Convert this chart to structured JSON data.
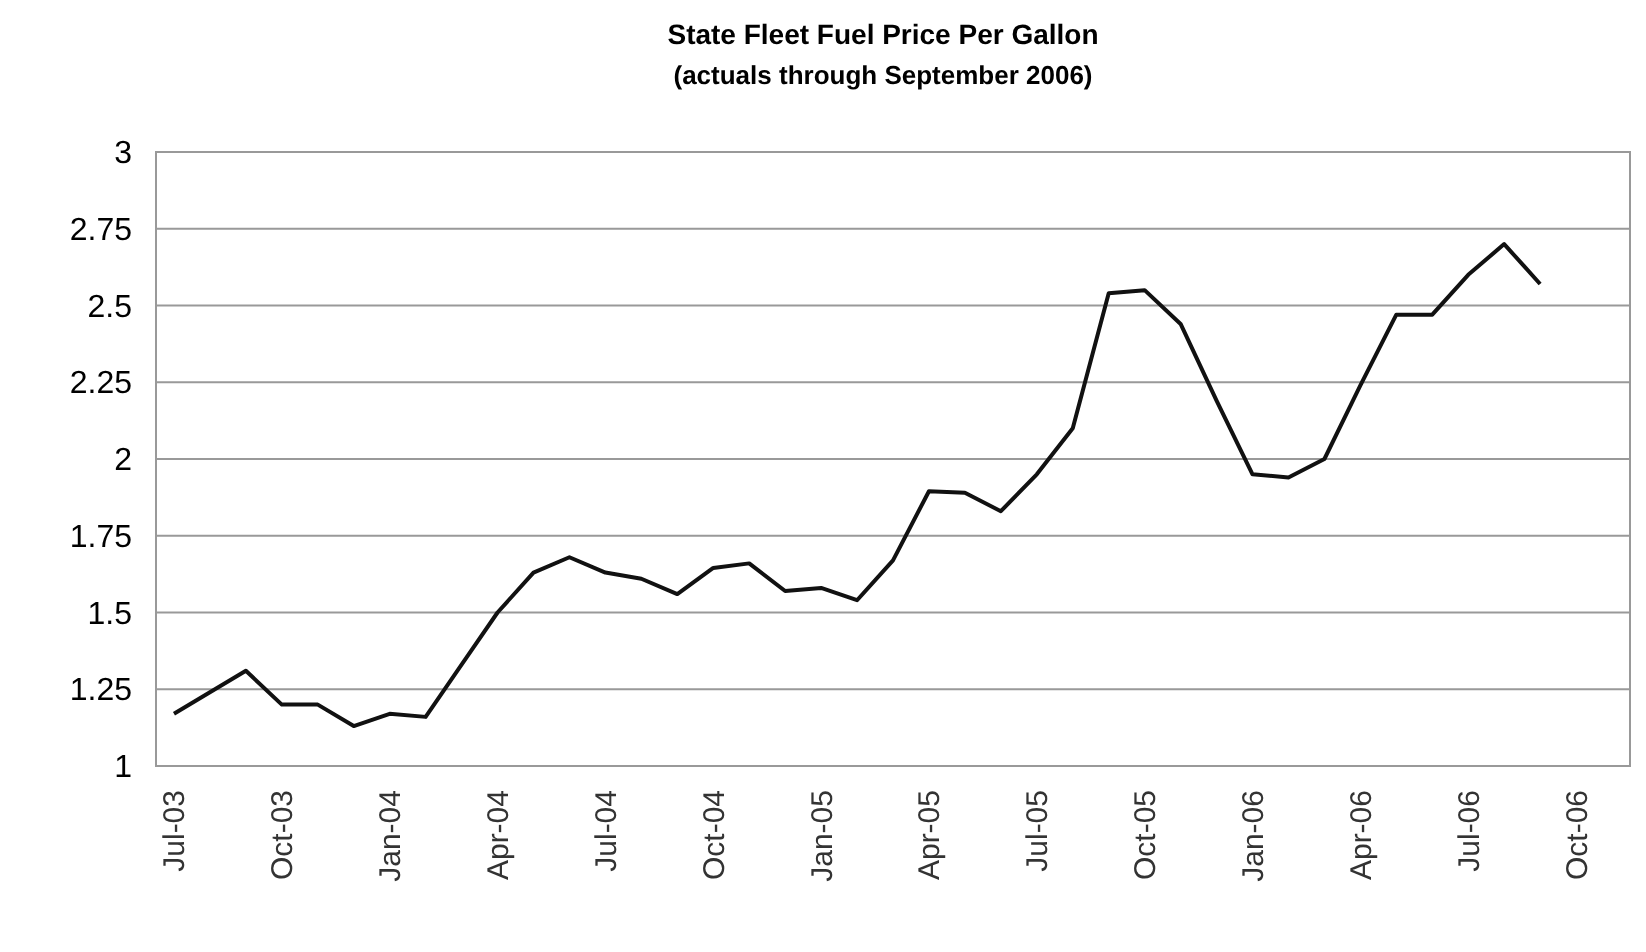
{
  "chart_data": {
    "type": "line",
    "title": "State Fleet Fuel Price Per Gallon",
    "subtitle": "(actuals through September 2006)",
    "categories": [
      "Jul-03",
      null,
      null,
      "Oct-03",
      null,
      null,
      "Jan-04",
      null,
      null,
      "Apr-04",
      null,
      null,
      "Jul-04",
      null,
      null,
      "Oct-04",
      null,
      null,
      "Jan-05",
      null,
      null,
      "Apr-05",
      null,
      null,
      "Jul-05",
      null,
      null,
      "Oct-05",
      null,
      null,
      "Jan-06",
      null,
      null,
      "Apr-06",
      null,
      null,
      "Jul-06",
      null,
      null,
      "Oct-06",
      null
    ],
    "series": [
      {
        "color": "#111111",
        "values": [
          1.17,
          1.24,
          1.31,
          1.2,
          1.2,
          1.13,
          1.17,
          1.16,
          1.33,
          1.5,
          1.63,
          1.68,
          1.63,
          1.61,
          1.56,
          1.645,
          1.66,
          1.57,
          1.58,
          1.54,
          1.67,
          1.895,
          1.89,
          1.83,
          1.95,
          2.1,
          2.54,
          2.55,
          2.44,
          2.19,
          1.95,
          1.94,
          2.0,
          2.24,
          2.47,
          2.47,
          2.6,
          2.7,
          2.57,
          null,
          null
        ]
      }
    ],
    "ylim": [
      1,
      3
    ],
    "yticks": [
      1,
      1.25,
      1.5,
      1.75,
      2,
      2.25,
      2.5,
      2.75,
      3
    ],
    "grid": "y",
    "marker": "none",
    "line_style": "solid"
  }
}
